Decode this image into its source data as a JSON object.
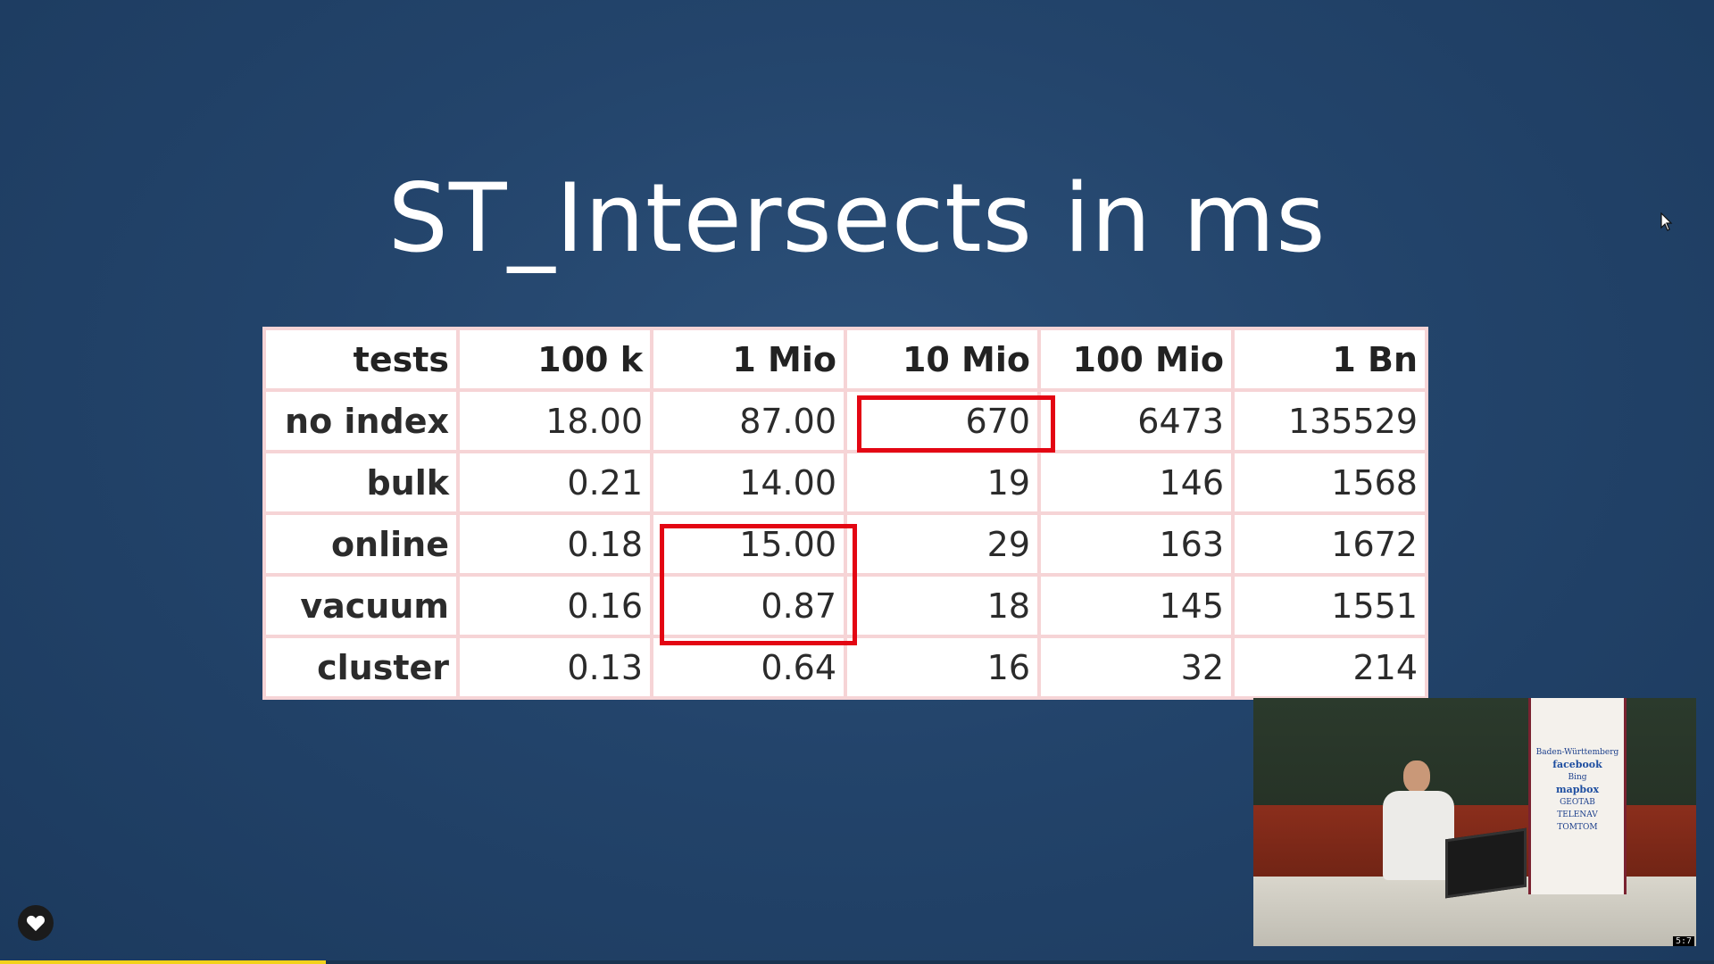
{
  "slide": {
    "title": "ST_Intersects in ms"
  },
  "table": {
    "headers": [
      "tests",
      "100 k",
      "1 Mio",
      "10 Mio",
      "100 Mio",
      "1 Bn"
    ],
    "rows": [
      {
        "label": "no index",
        "cells": [
          "18.00",
          "87.00",
          "670",
          "6473",
          "135529"
        ]
      },
      {
        "label": "bulk",
        "cells": [
          "0.21",
          "14.00",
          "19",
          "146",
          "1568"
        ]
      },
      {
        "label": "online",
        "cells": [
          "0.18",
          "15.00",
          "29",
          "163",
          "1672"
        ]
      },
      {
        "label": "vacuum",
        "cells": [
          "0.16",
          "0.87",
          "18",
          "145",
          "1551"
        ]
      },
      {
        "label": "cluster",
        "cells": [
          "0.13",
          "0.64",
          "16",
          "32",
          "214"
        ]
      }
    ],
    "highlights": [
      "no index / 10 Mio",
      "online+vacuum / 1 Mio"
    ],
    "highlight_color": "#e30613"
  },
  "video": {
    "banner_lines": [
      "Baden-Württemberg",
      "facebook",
      "Bing",
      "mapbox",
      "GEOTAB",
      "TELENAV",
      "TOMTOM"
    ],
    "counter": "5:7"
  },
  "player": {
    "like_icon": "heart-icon",
    "progress": 0.19,
    "progress_color": "#f2d21b"
  },
  "colors": {
    "background": "#23446b",
    "table_border": "#f6d4d6"
  }
}
